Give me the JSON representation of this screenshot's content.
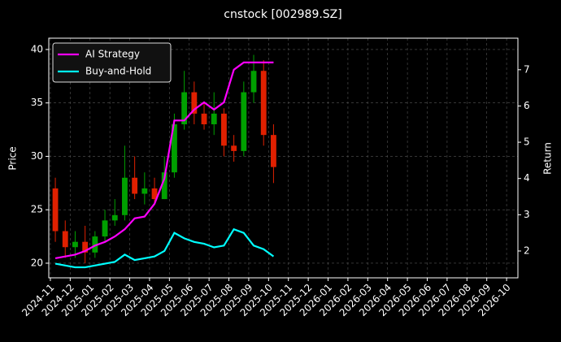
{
  "chart_data": {
    "type": "candlestick",
    "title": "cnstock [002989.SZ]",
    "y_label": "Price",
    "y2_label": "Return",
    "x": [
      0.25,
      0.75,
      1.25,
      1.75,
      2.25,
      2.75,
      3.25,
      3.75,
      4.25,
      4.75,
      5.25,
      5.75,
      6.25,
      6.75,
      7.25,
      7.75,
      8.25,
      8.75,
      9.25,
      9.75,
      10.25,
      10.75,
      11.25
    ],
    "open": [
      27,
      23,
      21.5,
      22,
      21,
      22.5,
      24,
      24.5,
      28,
      26.5,
      27,
      26,
      28.5,
      33,
      36,
      34,
      33,
      34,
      31,
      30.5,
      36,
      38,
      32
    ],
    "high": [
      28,
      24,
      23,
      23.5,
      23,
      25,
      26,
      31,
      30,
      28.5,
      28,
      30,
      34,
      38,
      37,
      35,
      36,
      34.5,
      32,
      37,
      39.5,
      39,
      33
    ],
    "low": [
      22,
      20.5,
      20.5,
      20,
      20.5,
      22,
      23.5,
      24,
      26,
      25.5,
      25.5,
      26,
      28,
      32.5,
      33,
      32.5,
      32,
      30,
      29.5,
      30,
      35,
      31,
      27.5
    ],
    "close": [
      23,
      21.5,
      22,
      21,
      22.5,
      24,
      24.5,
      28,
      26.5,
      27,
      26,
      28.5,
      33,
      36,
      34,
      33,
      34,
      31,
      30.5,
      36,
      38,
      32,
      29
    ],
    "up_color": "#00a000",
    "down_color": "#e02000",
    "series": [
      {
        "name": "AI Strategy",
        "color": "#ff00ff",
        "axis": "y2",
        "values": [
          1.8,
          1.85,
          1.9,
          2.0,
          2.15,
          2.25,
          2.4,
          2.6,
          2.9,
          2.95,
          3.3,
          4.0,
          5.6,
          5.6,
          5.9,
          6.1,
          5.9,
          6.1,
          7.0,
          7.2,
          7.2,
          7.2,
          7.2
        ]
      },
      {
        "name": "Buy-and-Hold",
        "color": "#00ffff",
        "axis": "y2",
        "values": [
          1.65,
          1.6,
          1.55,
          1.55,
          1.6,
          1.65,
          1.7,
          1.9,
          1.75,
          1.8,
          1.85,
          2.0,
          2.5,
          2.35,
          2.25,
          2.2,
          2.1,
          2.15,
          2.6,
          2.5,
          2.15,
          2.05,
          1.85
        ]
      }
    ],
    "xlim": [
      -0.08,
      23.57
    ],
    "xticks": [
      {
        "value": 0,
        "label": "2024-11"
      },
      {
        "value": 1,
        "label": "2024-12"
      },
      {
        "value": 2,
        "label": "2025-01"
      },
      {
        "value": 3,
        "label": "2025-02"
      },
      {
        "value": 4,
        "label": "2025-03"
      },
      {
        "value": 5,
        "label": "2025-04"
      },
      {
        "value": 6,
        "label": "2025-05"
      },
      {
        "value": 7,
        "label": "2025-06"
      },
      {
        "value": 8,
        "label": "2025-07"
      },
      {
        "value": 9,
        "label": "2025-08"
      },
      {
        "value": 10,
        "label": "2025-09"
      },
      {
        "value": 11,
        "label": "2025-10"
      },
      {
        "value": 12,
        "label": "2025-11"
      },
      {
        "value": 13,
        "label": "2025-12"
      },
      {
        "value": 14,
        "label": "2026-01"
      },
      {
        "value": 15,
        "label": "2026-02"
      },
      {
        "value": 16,
        "label": "2026-03"
      },
      {
        "value": 17,
        "label": "2026-04"
      },
      {
        "value": 18,
        "label": "2026-05"
      },
      {
        "value": 19,
        "label": "2026-06"
      },
      {
        "value": 20,
        "label": "2026-07"
      },
      {
        "value": 21,
        "label": "2026-08"
      },
      {
        "value": 22,
        "label": "2026-09"
      },
      {
        "value": 23,
        "label": "2026-10"
      }
    ],
    "ylim": [
      18.63,
      41.06
    ],
    "yticks": [
      20,
      25,
      30,
      35,
      40
    ],
    "y2lim": [
      1.26,
      7.87
    ],
    "y2ticks": [
      2,
      3,
      4,
      5,
      6,
      7
    ],
    "grid": true,
    "legend": "upper left"
  }
}
